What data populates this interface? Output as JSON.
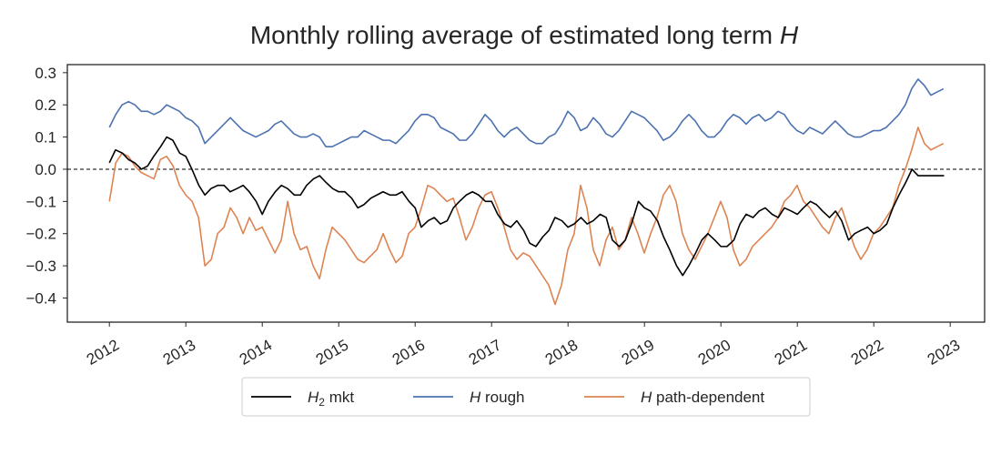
{
  "chart_data": {
    "type": "line",
    "title": "Monthly rolling average of estimated long term H",
    "title_text": "Monthly rolling average of estimated long term ",
    "title_italic": "H",
    "xlabel": "",
    "ylabel": "",
    "xlim": [
      2011.45,
      2023.45
    ],
    "ylim": [
      -0.475,
      0.325
    ],
    "x_ticks": [
      2012,
      2013,
      2014,
      2015,
      2016,
      2017,
      2018,
      2019,
      2020,
      2021,
      2022,
      2023
    ],
    "x_tick_labels": [
      "2012",
      "2013",
      "2014",
      "2015",
      "2016",
      "2017",
      "2018",
      "2019",
      "2020",
      "2021",
      "2022",
      "2023"
    ],
    "y_ticks": [
      0.3,
      0.2,
      0.1,
      0.0,
      -0.1,
      -0.2,
      -0.3,
      -0.4
    ],
    "y_tick_labels": [
      "0.3",
      "0.2",
      "0.1",
      "0.0",
      "−0.1",
      "−0.2",
      "−0.3",
      "−0.4"
    ],
    "reference_line": {
      "y": 0.0,
      "style": "dashed",
      "color": "#000000"
    },
    "legend_position": "bottom-center",
    "series": [
      {
        "name": "H2 mkt",
        "label_main": "H",
        "label_sub": "2",
        "label_rest": " mkt",
        "color": "#000000",
        "x": [
          2012.0,
          2012.08,
          2012.17,
          2012.25,
          2012.33,
          2012.42,
          2012.5,
          2012.58,
          2012.67,
          2012.75,
          2012.83,
          2012.92,
          2013.0,
          2013.08,
          2013.17,
          2013.25,
          2013.33,
          2013.42,
          2013.5,
          2013.58,
          2013.67,
          2013.75,
          2013.83,
          2013.92,
          2014.0,
          2014.08,
          2014.17,
          2014.25,
          2014.33,
          2014.42,
          2014.5,
          2014.58,
          2014.67,
          2014.75,
          2014.83,
          2014.92,
          2015.0,
          2015.08,
          2015.17,
          2015.25,
          2015.33,
          2015.42,
          2015.5,
          2015.58,
          2015.67,
          2015.75,
          2015.83,
          2015.92,
          2016.0,
          2016.08,
          2016.17,
          2016.25,
          2016.33,
          2016.42,
          2016.5,
          2016.58,
          2016.67,
          2016.75,
          2016.83,
          2016.92,
          2017.0,
          2017.08,
          2017.17,
          2017.25,
          2017.33,
          2017.42,
          2017.5,
          2017.58,
          2017.67,
          2017.75,
          2017.83,
          2017.92,
          2018.0,
          2018.08,
          2018.17,
          2018.25,
          2018.33,
          2018.42,
          2018.5,
          2018.58,
          2018.67,
          2018.75,
          2018.83,
          2018.92,
          2019.0,
          2019.08,
          2019.17,
          2019.25,
          2019.33,
          2019.42,
          2019.5,
          2019.58,
          2019.67,
          2019.75,
          2019.83,
          2019.92,
          2020.0,
          2020.08,
          2020.17,
          2020.25,
          2020.33,
          2020.42,
          2020.5,
          2020.58,
          2020.67,
          2020.75,
          2020.83,
          2020.92,
          2021.0,
          2021.08,
          2021.17,
          2021.25,
          2021.33,
          2021.42,
          2021.5,
          2021.58,
          2021.67,
          2021.75,
          2021.83,
          2021.92,
          2022.0,
          2022.08,
          2022.17,
          2022.25,
          2022.33,
          2022.42,
          2022.5,
          2022.58,
          2022.67,
          2022.75,
          2022.83,
          2022.92
        ],
        "values": [
          0.02,
          0.06,
          0.05,
          0.03,
          0.02,
          0.0,
          0.01,
          0.04,
          0.07,
          0.1,
          0.09,
          0.05,
          0.04,
          0.0,
          -0.05,
          -0.08,
          -0.06,
          -0.05,
          -0.05,
          -0.07,
          -0.06,
          -0.05,
          -0.07,
          -0.1,
          -0.14,
          -0.1,
          -0.07,
          -0.05,
          -0.06,
          -0.08,
          -0.08,
          -0.05,
          -0.03,
          -0.02,
          -0.04,
          -0.06,
          -0.07,
          -0.07,
          -0.09,
          -0.12,
          -0.11,
          -0.09,
          -0.08,
          -0.07,
          -0.08,
          -0.08,
          -0.07,
          -0.1,
          -0.12,
          -0.18,
          -0.16,
          -0.15,
          -0.17,
          -0.16,
          -0.12,
          -0.1,
          -0.08,
          -0.07,
          -0.08,
          -0.1,
          -0.1,
          -0.14,
          -0.17,
          -0.18,
          -0.16,
          -0.19,
          -0.23,
          -0.24,
          -0.21,
          -0.19,
          -0.15,
          -0.16,
          -0.18,
          -0.17,
          -0.15,
          -0.17,
          -0.16,
          -0.14,
          -0.15,
          -0.22,
          -0.24,
          -0.22,
          -0.17,
          -0.1,
          -0.12,
          -0.13,
          -0.16,
          -0.21,
          -0.25,
          -0.3,
          -0.33,
          -0.3,
          -0.26,
          -0.22,
          -0.2,
          -0.22,
          -0.24,
          -0.24,
          -0.22,
          -0.17,
          -0.14,
          -0.15,
          -0.13,
          -0.12,
          -0.14,
          -0.15,
          -0.12,
          -0.13,
          -0.14,
          -0.12,
          -0.1,
          -0.11,
          -0.13,
          -0.15,
          -0.13,
          -0.16,
          -0.22,
          -0.2,
          -0.19,
          -0.18,
          -0.2,
          -0.19,
          -0.17,
          -0.12,
          -0.08,
          -0.04,
          0.0,
          -0.02,
          -0.02,
          -0.02,
          -0.02,
          -0.02
        ],
        "x_start": 2012.0,
        "x_step": 0.0833
      },
      {
        "name": "H rough",
        "label_main": "H",
        "label_sub": "",
        "label_rest": " rough",
        "color": "#4c72b0",
        "x_start": 2012.0,
        "x_step": 0.0833,
        "values": [
          0.13,
          0.17,
          0.2,
          0.21,
          0.2,
          0.18,
          0.18,
          0.17,
          0.18,
          0.2,
          0.19,
          0.18,
          0.16,
          0.15,
          0.13,
          0.08,
          0.1,
          0.12,
          0.14,
          0.16,
          0.14,
          0.12,
          0.11,
          0.1,
          0.11,
          0.12,
          0.14,
          0.15,
          0.13,
          0.11,
          0.1,
          0.1,
          0.11,
          0.1,
          0.07,
          0.07,
          0.08,
          0.09,
          0.1,
          0.1,
          0.12,
          0.11,
          0.1,
          0.09,
          0.09,
          0.08,
          0.1,
          0.12,
          0.15,
          0.17,
          0.17,
          0.16,
          0.13,
          0.12,
          0.11,
          0.09,
          0.09,
          0.11,
          0.14,
          0.17,
          0.15,
          0.12,
          0.1,
          0.12,
          0.13,
          0.11,
          0.09,
          0.08,
          0.08,
          0.1,
          0.11,
          0.14,
          0.18,
          0.16,
          0.12,
          0.13,
          0.16,
          0.14,
          0.11,
          0.1,
          0.12,
          0.15,
          0.18,
          0.17,
          0.16,
          0.14,
          0.12,
          0.09,
          0.1,
          0.12,
          0.15,
          0.17,
          0.15,
          0.12,
          0.1,
          0.1,
          0.12,
          0.15,
          0.17,
          0.16,
          0.14,
          0.16,
          0.17,
          0.15,
          0.16,
          0.18,
          0.17,
          0.14,
          0.12,
          0.11,
          0.13,
          0.12,
          0.11,
          0.13,
          0.15,
          0.13,
          0.11,
          0.1,
          0.1,
          0.11,
          0.12,
          0.12,
          0.13,
          0.15,
          0.17,
          0.2,
          0.25,
          0.28,
          0.26,
          0.23,
          0.24,
          0.25
        ]
      },
      {
        "name": "H path-dependent",
        "label_main": "H",
        "label_sub": "",
        "label_rest": " path-dependent",
        "color": "#dd8452",
        "x_start": 2012.0,
        "x_step": 0.0833,
        "values": [
          -0.1,
          0.02,
          0.05,
          0.04,
          0.01,
          -0.01,
          -0.02,
          -0.03,
          0.03,
          0.04,
          0.01,
          -0.05,
          -0.08,
          -0.1,
          -0.15,
          -0.3,
          -0.28,
          -0.2,
          -0.18,
          -0.12,
          -0.15,
          -0.2,
          -0.15,
          -0.19,
          -0.18,
          -0.22,
          -0.26,
          -0.22,
          -0.1,
          -0.2,
          -0.25,
          -0.24,
          -0.3,
          -0.34,
          -0.25,
          -0.18,
          -0.2,
          -0.22,
          -0.25,
          -0.28,
          -0.29,
          -0.27,
          -0.25,
          -0.2,
          -0.25,
          -0.29,
          -0.27,
          -0.2,
          -0.18,
          -0.12,
          -0.05,
          -0.06,
          -0.08,
          -0.1,
          -0.09,
          -0.15,
          -0.22,
          -0.18,
          -0.12,
          -0.08,
          -0.07,
          -0.12,
          -0.18,
          -0.25,
          -0.28,
          -0.26,
          -0.27,
          -0.3,
          -0.33,
          -0.36,
          -0.42,
          -0.36,
          -0.25,
          -0.2,
          -0.05,
          -0.12,
          -0.25,
          -0.3,
          -0.22,
          -0.18,
          -0.25,
          -0.22,
          -0.15,
          -0.2,
          -0.26,
          -0.2,
          -0.15,
          -0.08,
          -0.05,
          -0.1,
          -0.2,
          -0.25,
          -0.28,
          -0.24,
          -0.2,
          -0.15,
          -0.1,
          -0.15,
          -0.25,
          -0.3,
          -0.28,
          -0.24,
          -0.22,
          -0.2,
          -0.18,
          -0.15,
          -0.1,
          -0.08,
          -0.05,
          -0.1,
          -0.12,
          -0.15,
          -0.18,
          -0.2,
          -0.15,
          -0.12,
          -0.18,
          -0.24,
          -0.28,
          -0.25,
          -0.2,
          -0.18,
          -0.15,
          -0.12,
          -0.05,
          0.0,
          0.06,
          0.13,
          0.08,
          0.06,
          0.07,
          0.08
        ]
      }
    ]
  }
}
